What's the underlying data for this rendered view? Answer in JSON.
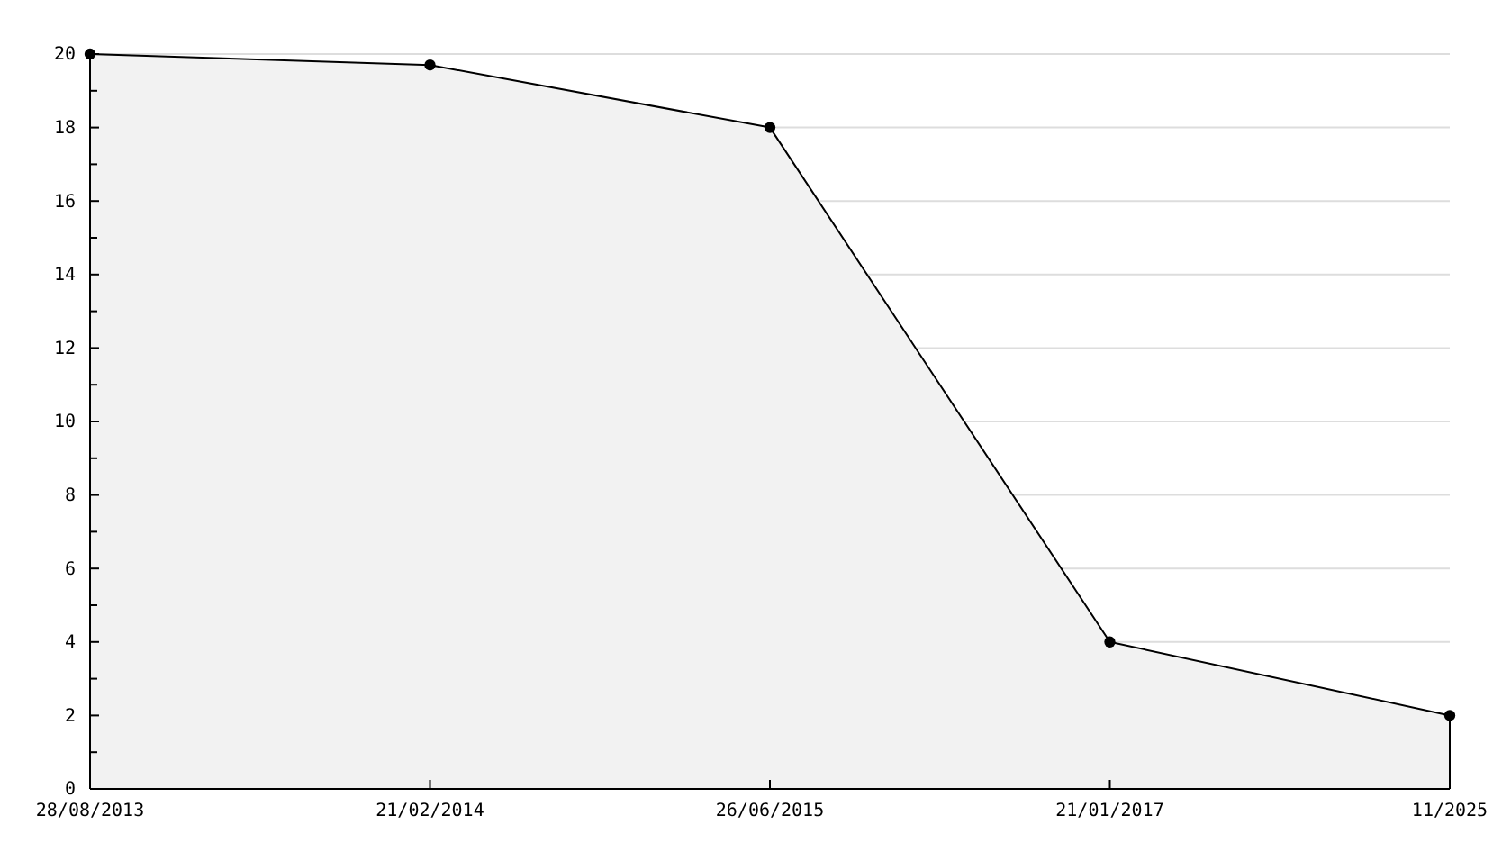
{
  "chart_data": {
    "type": "area",
    "categories": [
      "28/08/2013",
      "21/02/2014",
      "26/06/2015",
      "21/01/2017",
      "11/2025"
    ],
    "series": [
      {
        "color": "#000000",
        "values": [
          20,
          19.7,
          18,
          4,
          2
        ]
      }
    ],
    "ylim": [
      0,
      20
    ],
    "yticks": [
      0,
      {
        "value": 1,
        "label": null
      },
      2,
      {
        "value": 3,
        "label": null
      },
      4,
      {
        "value": 5,
        "label": null
      },
      6,
      {
        "value": 7,
        "label": null
      },
      8,
      {
        "value": 9,
        "label": null
      },
      10,
      {
        "value": 11,
        "label": null
      },
      12,
      {
        "value": 13,
        "label": null
      },
      14,
      {
        "value": 15,
        "label": null
      },
      16,
      {
        "value": 17,
        "label": null
      },
      18,
      {
        "value": 19,
        "label": null
      },
      20
    ],
    "grid": "y",
    "marker": "circle",
    "line_style": "solid"
  }
}
